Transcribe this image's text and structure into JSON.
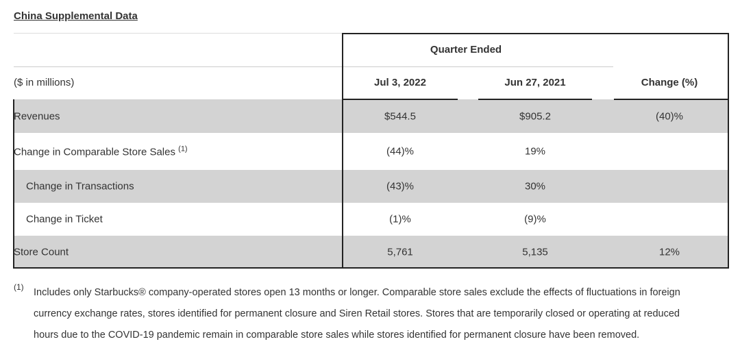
{
  "title": "China Supplemental Data",
  "header": {
    "group": "Quarter Ended",
    "units": "($ in millions)",
    "col1": "Jul 3, 2022",
    "col2": "Jun 27, 2021",
    "col3": "Change (%)"
  },
  "rows": [
    {
      "label": "Revenues",
      "v1": "$544.5",
      "v2": "$905.2",
      "v3": "(40)%",
      "shaded": true
    },
    {
      "label": "Change in Comparable Store Sales",
      "sup": "(1)",
      "v1": "(44)%",
      "v2": "19%",
      "v3": "",
      "shaded": false
    },
    {
      "label": "Change in Transactions",
      "v1": "(43)%",
      "v2": "30%",
      "v3": "",
      "shaded": true
    },
    {
      "label": "Change in Ticket",
      "v1": "(1)%",
      "v2": "(9)%",
      "v3": "",
      "shaded": false
    },
    {
      "label": "Store Count",
      "v1": "5,761",
      "v2": "5,135",
      "v3": "12%",
      "shaded": true
    }
  ],
  "footnote": {
    "marker": "(1)",
    "lines": [
      "Includes only Starbucks® company-operated stores open 13 months or longer. Comparable store sales exclude the effects of fluctuations in foreign",
      "currency exchange rates, stores identified for permanent closure and Siren Retail stores. Stores that are temporarily closed or operating at reduced",
      "hours due to the COVID-19 pandemic remain in comparable store sales while stores identified for permanent closure have been removed."
    ]
  },
  "colors": {
    "shade": "#d3d3d3",
    "border": "#222222"
  }
}
